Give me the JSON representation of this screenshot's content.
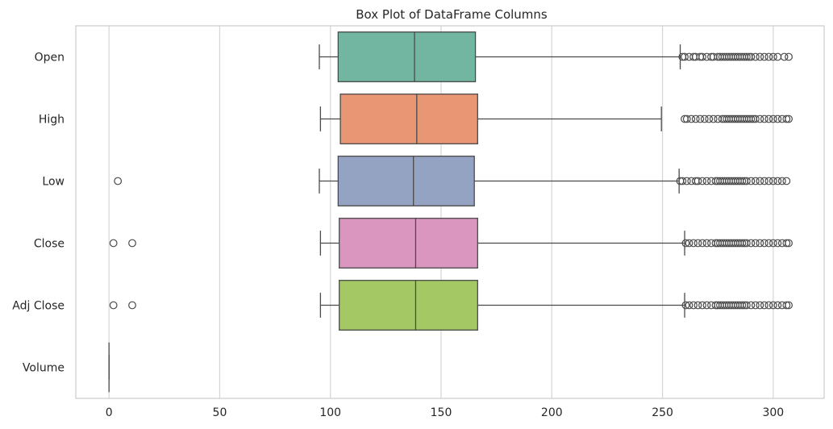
{
  "chart_data": {
    "type": "box",
    "orientation": "horizontal",
    "title": "Box Plot of DataFrame Columns",
    "xlabel": "",
    "ylabel": "",
    "xlim": [
      -15,
      323
    ],
    "xticks": [
      0,
      50,
      100,
      150,
      200,
      250,
      300
    ],
    "grid": true,
    "legend": "none",
    "series": [
      {
        "name": "Open",
        "color": "#72b6a1",
        "whisker_low": 95,
        "q1": 103.5,
        "median": 138,
        "q3": 165.5,
        "whisker_high": 258,
        "outliers": [
          259,
          260,
          262,
          264,
          265,
          267,
          268,
          270,
          272,
          273,
          275,
          276,
          277,
          278,
          279,
          280,
          281,
          282,
          283,
          284,
          285,
          286,
          287,
          288,
          289,
          290,
          292,
          294,
          296,
          298,
          300,
          302,
          305,
          307
        ]
      },
      {
        "name": "High",
        "color": "#e99675",
        "whisker_low": 95.5,
        "q1": 104.5,
        "median": 139,
        "q3": 166.5,
        "whisker_high": 249.5,
        "outliers": [
          260,
          261,
          263,
          265,
          267,
          269,
          271,
          273,
          275,
          277,
          278,
          279,
          280,
          281,
          282,
          283,
          284,
          285,
          286,
          287,
          288,
          289,
          290,
          291,
          292,
          294,
          296,
          298,
          300,
          302,
          304,
          306,
          307
        ]
      },
      {
        "name": "Low",
        "color": "#95a3c3",
        "whisker_low": 95,
        "q1": 103.5,
        "median": 137.5,
        "q3": 165,
        "whisker_high": 257.5,
        "outliers": [
          4,
          258,
          259,
          261,
          263,
          265,
          266,
          268,
          270,
          272,
          274,
          275,
          276,
          277,
          278,
          279,
          280,
          281,
          282,
          283,
          284,
          285,
          286,
          287,
          288,
          290,
          292,
          294,
          296,
          298,
          300,
          302,
          304,
          306
        ]
      },
      {
        "name": "Close",
        "color": "#db96c0",
        "whisker_low": 95.5,
        "q1": 104,
        "median": 138.5,
        "q3": 166.5,
        "whisker_high": 260,
        "outliers": [
          2,
          10.5,
          260.5,
          262,
          264,
          266,
          268,
          270,
          272,
          274,
          275,
          276,
          277,
          278,
          279,
          280,
          281,
          282,
          283,
          284,
          285,
          286,
          287,
          288,
          290,
          292,
          294,
          296,
          298,
          300,
          302,
          304,
          306,
          307
        ]
      },
      {
        "name": "Adj Close",
        "color": "#a4c964",
        "whisker_low": 95.5,
        "q1": 104,
        "median": 138.5,
        "q3": 166.5,
        "whisker_high": 260,
        "outliers": [
          2,
          10.5,
          260.5,
          262,
          264,
          266,
          268,
          270,
          272,
          274,
          275,
          276,
          277,
          278,
          279,
          280,
          281,
          282,
          283,
          284,
          285,
          286,
          287,
          288,
          290,
          292,
          294,
          296,
          298,
          300,
          302,
          304,
          306,
          307
        ]
      },
      {
        "name": "Volume",
        "color": "#ffd92f",
        "whisker_low": 0,
        "q1": 0,
        "median": 0,
        "q3": 0,
        "whisker_high": 0,
        "outliers": []
      }
    ]
  }
}
